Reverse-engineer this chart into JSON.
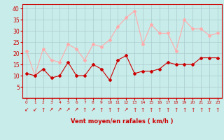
{
  "x": [
    0,
    1,
    2,
    3,
    4,
    5,
    6,
    7,
    8,
    9,
    10,
    11,
    12,
    13,
    14,
    15,
    16,
    17,
    18,
    19,
    20,
    21,
    22,
    23
  ],
  "mean_wind": [
    11,
    10,
    13,
    9,
    10,
    16,
    10,
    10,
    15,
    13,
    8,
    17,
    19,
    11,
    12,
    12,
    13,
    16,
    15,
    15,
    15,
    18,
    18,
    18
  ],
  "gust_wind": [
    21,
    10,
    22,
    17,
    16,
    24,
    22,
    17,
    24,
    23,
    26,
    32,
    36,
    39,
    24,
    33,
    29,
    29,
    21,
    35,
    31,
    31,
    28,
    29
  ],
  "mean_color": "#cc0000",
  "gust_color": "#ffaaaa",
  "bg_color": "#c8ecea",
  "grid_color": "#aacccc",
  "xlabel": "Vent moyen/en rafales ( km/h )",
  "xlabel_color": "#cc0000",
  "tick_color": "#cc0000",
  "ylim": [
    0,
    42
  ],
  "yticks": [
    5,
    10,
    15,
    20,
    25,
    30,
    35,
    40
  ],
  "arrow_chars": [
    "↙",
    "↙",
    "↑",
    "↗",
    "↗",
    "↗",
    "↗",
    "↑",
    "↗",
    "↑",
    "↑",
    "↑",
    "↗",
    "↑",
    "↑",
    "↑",
    "↑",
    "↑",
    "↑",
    "↑",
    "↑",
    "↑",
    "↑",
    "↑"
  ],
  "marker": "D",
  "markersize": 2.0,
  "linewidth": 0.8
}
